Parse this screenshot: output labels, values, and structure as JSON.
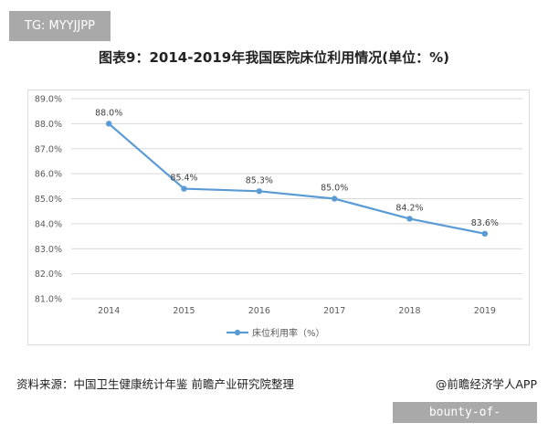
{
  "badge": "TG: MYYJJPP",
  "footer": {
    "source": "资料来源：中国卫生健康统计年鉴 前瞻产业研究院整理",
    "credit": "@前瞻经济学人APP"
  },
  "watermark_box": "bounty-of-empress.com",
  "chart_data": {
    "type": "line",
    "title": "图表9：2014-2019年我国医院床位利用情况(单位：%)",
    "categories": [
      "2014",
      "2015",
      "2016",
      "2017",
      "2018",
      "2019"
    ],
    "series": [
      {
        "name": "床位利用率（%）",
        "values": [
          88.0,
          85.4,
          85.3,
          85.0,
          84.2,
          83.6
        ],
        "labels": [
          "88.0%",
          "85.4%",
          "85.3%",
          "85.0%",
          "84.2%",
          "83.6%"
        ],
        "color": "#5b9bd5"
      }
    ],
    "yticks": [
      "81.0%",
      "82.0%",
      "83.0%",
      "84.0%",
      "85.0%",
      "86.0%",
      "87.0%",
      "88.0%",
      "89.0%"
    ],
    "ylim": [
      81,
      89
    ],
    "grid": true,
    "legend": "bottom"
  }
}
